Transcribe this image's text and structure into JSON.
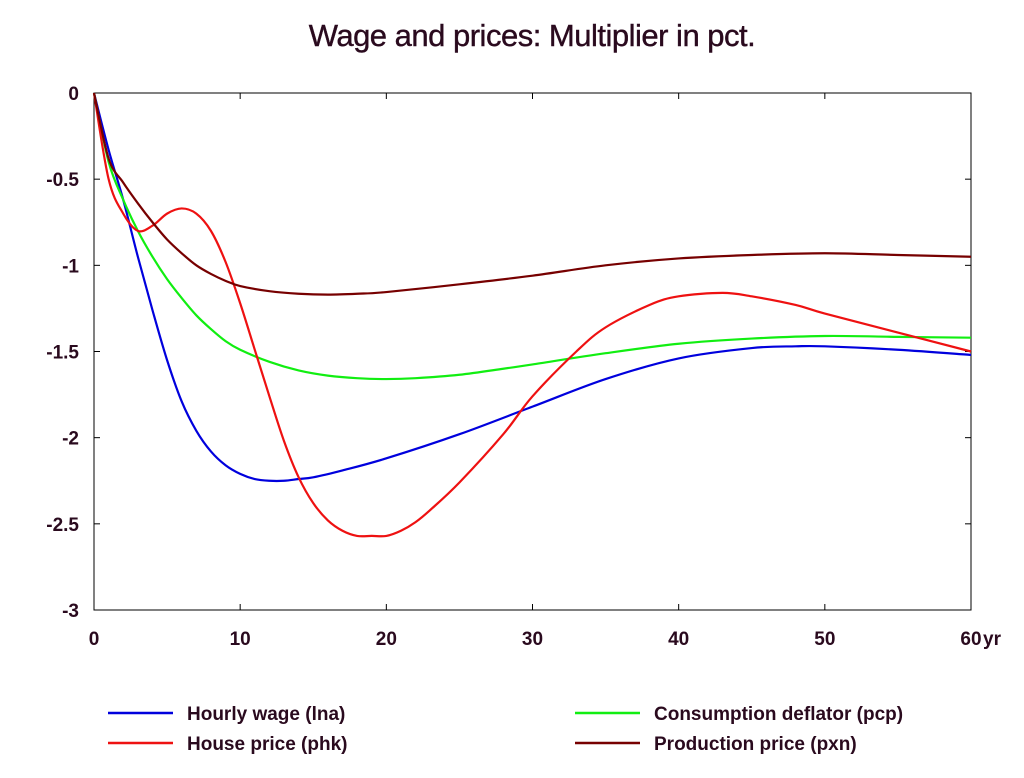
{
  "chart_data": {
    "type": "line",
    "title": "Wage and prices: Multiplier in pct.",
    "x_unit_label": "yr",
    "xlim": [
      0,
      60
    ],
    "ylim": [
      -3,
      0
    ],
    "x_ticks": [
      0,
      10,
      20,
      30,
      40,
      50,
      60
    ],
    "y_ticks": [
      0,
      -0.5,
      -1,
      -1.5,
      -2,
      -2.5,
      -3
    ],
    "x_tick_labels": [
      "0",
      "10",
      "20",
      "30",
      "40",
      "50",
      "60"
    ],
    "y_tick_labels": [
      "0",
      "-0.5",
      "-1",
      "-1.5",
      "-2",
      "-2.5",
      "-3"
    ],
    "grid": false,
    "legend_position": "bottom",
    "series": [
      {
        "name": "Hourly wage (lna)",
        "color": "#0000dd",
        "x": [
          0,
          1,
          2,
          3,
          4,
          5,
          6,
          7,
          8,
          9,
          10,
          11,
          12,
          13,
          14,
          15,
          17,
          20,
          25,
          30,
          35,
          40,
          45,
          48,
          50,
          55,
          60
        ],
        "y": [
          0,
          -0.33,
          -0.62,
          -0.95,
          -1.26,
          -1.55,
          -1.79,
          -1.96,
          -2.08,
          -2.16,
          -2.21,
          -2.24,
          -2.25,
          -2.25,
          -2.24,
          -2.23,
          -2.19,
          -2.12,
          -1.98,
          -1.82,
          -1.66,
          -1.54,
          -1.48,
          -1.47,
          -1.47,
          -1.49,
          -1.52
        ]
      },
      {
        "name": "House price (phk)",
        "color": "#ee1111",
        "x": [
          0,
          1,
          2,
          3,
          4,
          5,
          6,
          7,
          8,
          9,
          10,
          11,
          12,
          13,
          14,
          15,
          16,
          17,
          18,
          19,
          20,
          21,
          22,
          23,
          25,
          28,
          30,
          33,
          35,
          38,
          40,
          43,
          45,
          48,
          50,
          55,
          60
        ],
        "y": [
          0,
          -0.5,
          -0.7,
          -0.8,
          -0.77,
          -0.7,
          -0.67,
          -0.7,
          -0.8,
          -0.98,
          -1.22,
          -1.49,
          -1.76,
          -2.02,
          -2.23,
          -2.38,
          -2.48,
          -2.54,
          -2.57,
          -2.57,
          -2.57,
          -2.54,
          -2.49,
          -2.42,
          -2.26,
          -1.98,
          -1.76,
          -1.5,
          -1.36,
          -1.23,
          -1.18,
          -1.16,
          -1.18,
          -1.23,
          -1.28,
          -1.39,
          -1.5
        ]
      },
      {
        "name": "Consumption deflator (pcp)",
        "color": "#11ee11",
        "x": [
          0,
          1,
          2,
          3,
          4,
          5,
          6,
          7,
          8,
          9,
          10,
          12,
          14,
          16,
          18,
          20,
          22,
          25,
          28,
          30,
          35,
          40,
          45,
          50,
          55,
          60
        ],
        "y": [
          0,
          -0.4,
          -0.62,
          -0.8,
          -0.95,
          -1.08,
          -1.19,
          -1.29,
          -1.37,
          -1.44,
          -1.49,
          -1.56,
          -1.61,
          -1.64,
          -1.655,
          -1.66,
          -1.655,
          -1.635,
          -1.6,
          -1.575,
          -1.51,
          -1.455,
          -1.425,
          -1.41,
          -1.415,
          -1.42
        ]
      },
      {
        "name": "Production price (pxn)",
        "color": "#770000",
        "x": [
          0,
          1,
          2,
          3,
          4,
          5,
          6,
          7,
          8,
          9,
          10,
          12,
          14,
          16,
          18,
          20,
          25,
          30,
          35,
          40,
          45,
          50,
          55,
          60
        ],
        "y": [
          0,
          -0.38,
          -0.52,
          -0.64,
          -0.75,
          -0.85,
          -0.93,
          -1.0,
          -1.05,
          -1.09,
          -1.12,
          -1.15,
          -1.165,
          -1.17,
          -1.165,
          -1.155,
          -1.11,
          -1.06,
          -1.0,
          -0.96,
          -0.94,
          -0.93,
          -0.94,
          -0.95
        ]
      }
    ]
  }
}
